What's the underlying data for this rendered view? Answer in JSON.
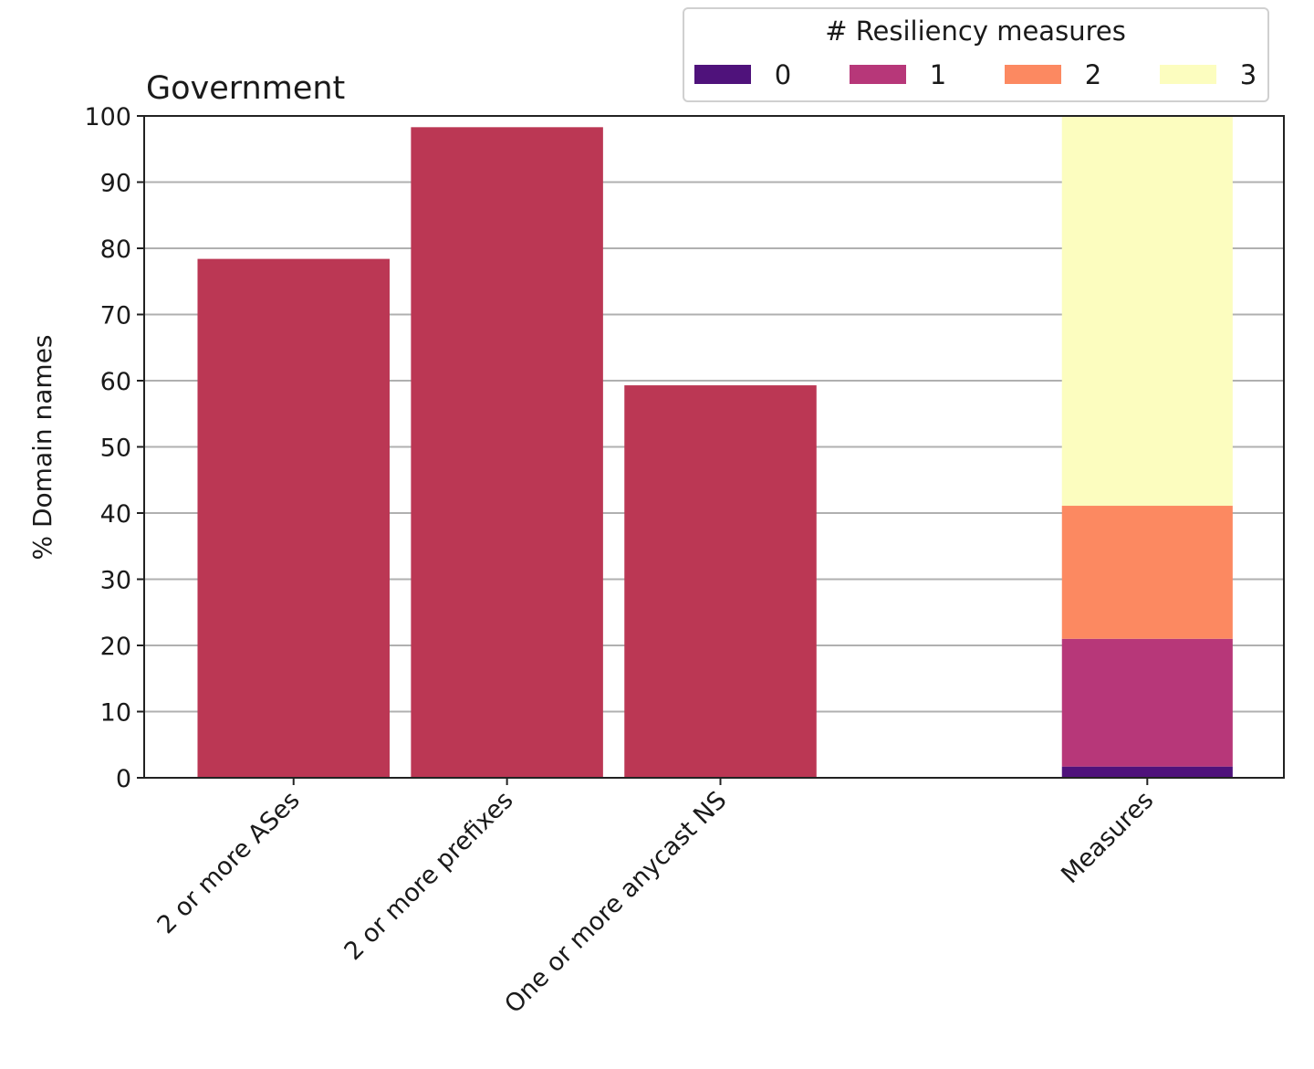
{
  "chart_data": {
    "type": "bar",
    "title": "Government",
    "xlabel": "",
    "ylabel": "% Domain names",
    "ylim": [
      0,
      100
    ],
    "xlim": [
      -0.7,
      4.64
    ],
    "yticks": [
      0,
      10,
      20,
      30,
      40,
      50,
      60,
      70,
      80,
      90,
      100
    ],
    "grid": "horizontal",
    "bars": [
      {
        "category": "2 or more ASes",
        "x": 0,
        "value": 78.4,
        "width": 0.9,
        "color": "#bb3754"
      },
      {
        "category": "2 or more prefixes",
        "x": 1,
        "value": 98.3,
        "width": 0.9,
        "color": "#bb3754"
      },
      {
        "category": "One or more anycast NS",
        "x": 2,
        "value": 59.3,
        "width": 0.9,
        "color": "#bb3754"
      }
    ],
    "stacked_bar": {
      "category": "Measures",
      "x": 4,
      "width": 0.8,
      "series": [
        {
          "name": "0",
          "value": 1.7,
          "color": "#4f127b"
        },
        {
          "name": "1",
          "value": 19.3,
          "color": "#b73779"
        },
        {
          "name": "2",
          "value": 20.1,
          "color": "#fc8961"
        },
        {
          "name": "3",
          "value": 58.9,
          "color": "#fcfdbf"
        }
      ]
    },
    "legend": {
      "title": "# Resiliency measures",
      "placement": "top-right, above plot",
      "entries": [
        "0",
        "1",
        "2",
        "3"
      ]
    }
  }
}
